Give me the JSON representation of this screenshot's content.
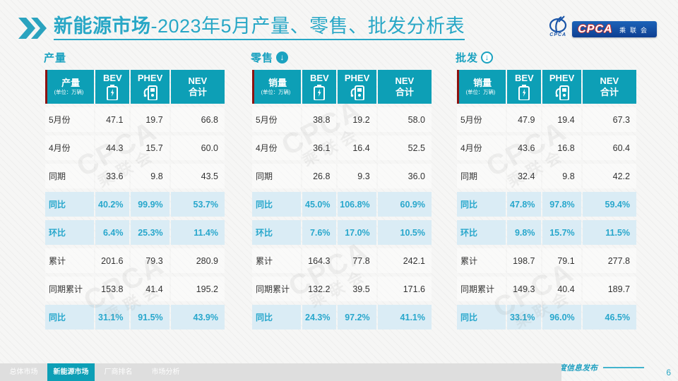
{
  "colors": {
    "teal_title": "#28a7c6",
    "teal_header_bg": "#0d9fb6",
    "highlight_row_bg": "#daecf5",
    "highlight_text": "#28a7cc",
    "accent_red": "#8d1210",
    "logo_blue": "#0f3f92",
    "footer_line": "#43b4cd"
  },
  "header": {
    "title_highlight": "新能源市场",
    "title_rest": "-2023年5月产量、零售、批发分析表"
  },
  "logo": {
    "swirl_caption": "CPCA",
    "box_title": "CPCA",
    "box_subtitle": "乘联会"
  },
  "watermark": {
    "text1": "CPCA",
    "text2": "乘联会"
  },
  "tables": [
    {
      "section_title": "产量",
      "arrow_icon": "none",
      "label": "产量",
      "unit": "(单位：万辆)",
      "col_bev": "BEV",
      "col_phev": "PHEV",
      "col_nev_line1": "NEV",
      "col_nev_line2": "合计",
      "rows": [
        {
          "label": "5月份",
          "values": [
            "47.1",
            "19.7",
            "66.8"
          ],
          "highlight": false
        },
        {
          "label": "4月份",
          "values": [
            "44.3",
            "15.7",
            "60.0"
          ],
          "highlight": false
        },
        {
          "label": "同期",
          "values": [
            "33.6",
            "9.8",
            "43.5"
          ],
          "highlight": false
        },
        {
          "label": "同比",
          "values": [
            "40.2%",
            "99.9%",
            "53.7%"
          ],
          "highlight": true
        },
        {
          "label": "环比",
          "values": [
            "6.4%",
            "25.3%",
            "11.4%"
          ],
          "highlight": true
        },
        {
          "label": "累计",
          "values": [
            "201.6",
            "79.3",
            "280.9"
          ],
          "highlight": false
        },
        {
          "label": "同期累计",
          "values": [
            "153.8",
            "41.4",
            "195.2"
          ],
          "highlight": false
        },
        {
          "label": "同比",
          "values": [
            "31.1%",
            "91.5%",
            "43.9%"
          ],
          "highlight": true
        }
      ]
    },
    {
      "section_title": "零售",
      "arrow_icon": "down-circle-solid",
      "label": "销量",
      "unit": "(单位：万辆)",
      "col_bev": "BEV",
      "col_phev": "PHEV",
      "col_nev_line1": "NEV",
      "col_nev_line2": "合计",
      "rows": [
        {
          "label": "5月份",
          "values": [
            "38.8",
            "19.2",
            "58.0"
          ],
          "highlight": false
        },
        {
          "label": "4月份",
          "values": [
            "36.1",
            "16.4",
            "52.5"
          ],
          "highlight": false
        },
        {
          "label": "同期",
          "values": [
            "26.8",
            "9.3",
            "36.0"
          ],
          "highlight": false
        },
        {
          "label": "同比",
          "values": [
            "45.0%",
            "106.8%",
            "60.9%"
          ],
          "highlight": true
        },
        {
          "label": "环比",
          "values": [
            "7.6%",
            "17.0%",
            "10.5%"
          ],
          "highlight": true
        },
        {
          "label": "累计",
          "values": [
            "164.3",
            "77.8",
            "242.1"
          ],
          "highlight": false
        },
        {
          "label": "同期累计",
          "values": [
            "132.2",
            "39.5",
            "171.6"
          ],
          "highlight": false
        },
        {
          "label": "同比",
          "values": [
            "24.3%",
            "97.2%",
            "41.1%"
          ],
          "highlight": true
        }
      ]
    },
    {
      "section_title": "批发",
      "arrow_icon": "down-circle-outline",
      "label": "销量",
      "unit": "(单位：万辆)",
      "col_bev": "BEV",
      "col_phev": "PHEV",
      "col_nev_line1": "NEV",
      "col_nev_line2": "合计",
      "rows": [
        {
          "label": "5月份",
          "values": [
            "47.9",
            "19.4",
            "67.3"
          ],
          "highlight": false
        },
        {
          "label": "4月份",
          "values": [
            "43.6",
            "16.8",
            "60.4"
          ],
          "highlight": false
        },
        {
          "label": "同期",
          "values": [
            "32.4",
            "9.8",
            "42.2"
          ],
          "highlight": false
        },
        {
          "label": "同比",
          "values": [
            "47.8%",
            "97.8%",
            "59.4%"
          ],
          "highlight": true
        },
        {
          "label": "环比",
          "values": [
            "9.8%",
            "15.7%",
            "11.5%"
          ],
          "highlight": true
        },
        {
          "label": "累计",
          "values": [
            "198.7",
            "79.1",
            "277.8"
          ],
          "highlight": false
        },
        {
          "label": "同期累计",
          "values": [
            "149.3",
            "40.4",
            "189.7"
          ],
          "highlight": false
        },
        {
          "label": "同比",
          "values": [
            "33.1%",
            "96.0%",
            "46.5%"
          ],
          "highlight": true
        }
      ]
    }
  ],
  "footer": {
    "note": "月度信息发布",
    "page_number": "6",
    "tabs": [
      {
        "label": "总体市场",
        "active": false
      },
      {
        "label": "新能源市场",
        "active": true
      },
      {
        "label": "厂商排名",
        "active": false
      },
      {
        "label": "市场分析",
        "active": false
      }
    ]
  }
}
